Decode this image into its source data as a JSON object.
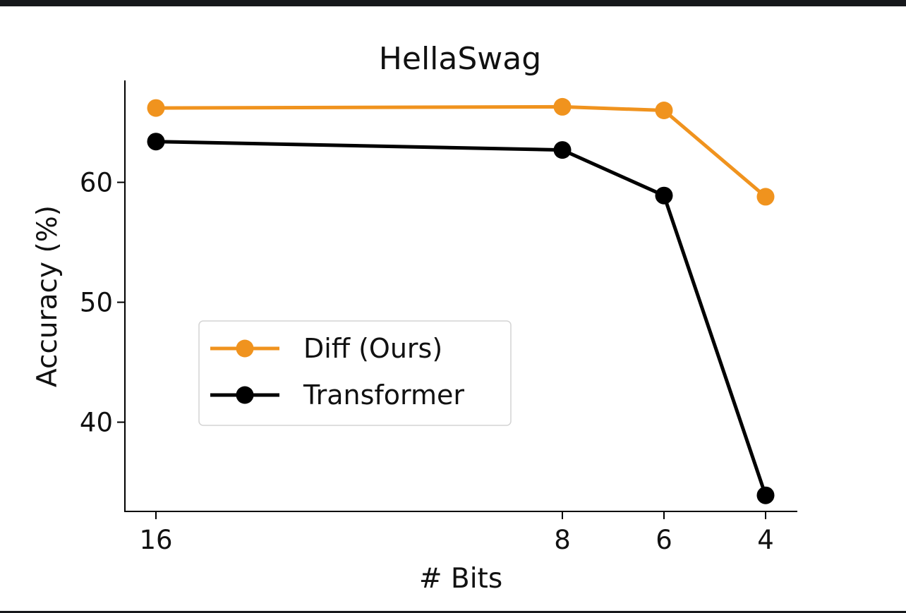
{
  "chart_data": {
    "type": "line",
    "title": "HellaSwag",
    "xlabel": "# Bits",
    "ylabel": "Accuracy (%)",
    "x": [
      16,
      8,
      6,
      4
    ],
    "x_tick_labels": [
      "16",
      "8",
      "6",
      "4"
    ],
    "y_ticks": [
      40,
      50,
      60
    ],
    "y_tick_labels": [
      "40",
      "50",
      "60"
    ],
    "ylim": [
      32.5,
      68.5
    ],
    "grid": false,
    "legend_position": "center-left",
    "series": [
      {
        "name": "Diff (Ours)",
        "color": "#f0931e",
        "values": [
          66.2,
          66.3,
          66.0,
          58.8
        ]
      },
      {
        "name": "Transformer",
        "color": "#000000",
        "values": [
          63.4,
          62.7,
          58.9,
          33.9
        ]
      }
    ]
  }
}
